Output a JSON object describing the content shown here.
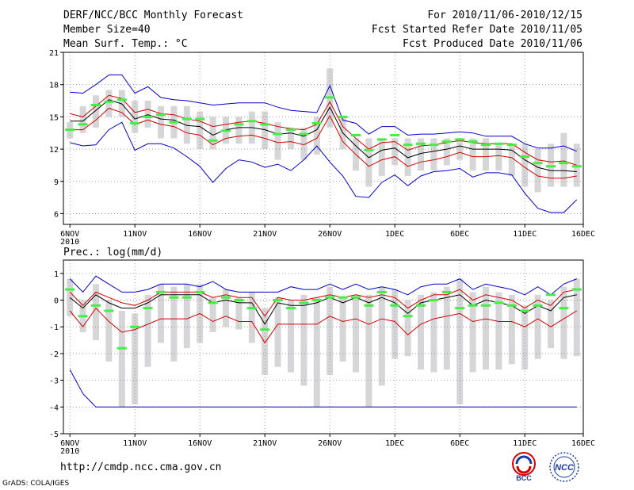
{
  "header": {
    "title": "DERF/NCC/BCC Monthly Forecast",
    "member_size": "Member Size=40",
    "variable": "Mean Surf. Temp.: °C",
    "period": "For 2010/11/06-2010/12/15",
    "started": "Fcst Started Refer Date 2010/11/05",
    "produced": "Fcst Produced Date 2010/11/06"
  },
  "footer": {
    "url": "http://cmdp.ncc.cma.gov.cn",
    "grads": "GrADS: COLA/IGES",
    "logo_bcc": "BCC",
    "logo_ncc": "NCC"
  },
  "colors": {
    "max_min": "#0000cc",
    "spread": "#d40000",
    "mean": "#000000",
    "box": "#d6d6d8",
    "climate": "#44ee44",
    "grid": "#888888"
  },
  "chart_data": [
    {
      "type": "box-line",
      "title": "Mean Surf. Temp.: °C",
      "ylim": [
        5,
        21
      ],
      "yticks": [
        6,
        9,
        12,
        15,
        18,
        21
      ],
      "xlim": [
        0,
        40
      ],
      "xticks": [
        {
          "x": 0.5,
          "label": "6NOV",
          "sub": "2010"
        },
        {
          "x": 5.5,
          "label": "11NOV"
        },
        {
          "x": 10.5,
          "label": "16NOV"
        },
        {
          "x": 15.5,
          "label": "21NOV"
        },
        {
          "x": 20.5,
          "label": "26NOV"
        },
        {
          "x": 25.5,
          "label": "1DEC"
        },
        {
          "x": 30.5,
          "label": "6DEC"
        },
        {
          "x": 35.5,
          "label": "11DEC"
        },
        {
          "x": 40,
          "label": "16DEC"
        }
      ],
      "days": [
        "6NOV",
        "7NOV",
        "8NOV",
        "9NOV",
        "10NOV",
        "11NOV",
        "12NOV",
        "13NOV",
        "14NOV",
        "15NOV",
        "16NOV",
        "17NOV",
        "18NOV",
        "19NOV",
        "20NOV",
        "21NOV",
        "22NOV",
        "23NOV",
        "24NOV",
        "25NOV",
        "26NOV",
        "27NOV",
        "28NOV",
        "29NOV",
        "30NOV",
        "1DEC",
        "2DEC",
        "3DEC",
        "4DEC",
        "5DEC",
        "6DEC",
        "7DEC",
        "8DEC",
        "9DEC",
        "10DEC",
        "11DEC",
        "12DEC",
        "13DEC",
        "14DEC",
        "15DEC"
      ],
      "series": [
        {
          "name": "max",
          "values": [
            17.3,
            17.2,
            18.0,
            18.9,
            18.9,
            17.2,
            17.8,
            16.8,
            16.6,
            16.5,
            16.3,
            16.1,
            16.2,
            16.3,
            16.3,
            16.3,
            15.9,
            15.6,
            15.5,
            15.4,
            17.9,
            14.7,
            14.4,
            13.4,
            14.1,
            14.1,
            13.3,
            13.4,
            13.4,
            13.5,
            13.6,
            13.5,
            13.2,
            13.2,
            13.2,
            12.5,
            12.1,
            12.1,
            12.3,
            11.8
          ]
        },
        {
          "name": "upper",
          "values": [
            15.3,
            15.0,
            16.0,
            17.0,
            16.7,
            15.4,
            15.7,
            15.3,
            15.2,
            14.8,
            14.6,
            14.1,
            14.3,
            14.5,
            14.6,
            14.4,
            14.1,
            13.9,
            13.8,
            14.3,
            16.4,
            14.1,
            13.0,
            12.0,
            12.6,
            12.7,
            11.9,
            12.3,
            12.4,
            12.6,
            12.8,
            12.6,
            12.5,
            12.5,
            12.5,
            11.7,
            11.0,
            10.8,
            10.9,
            10.5
          ]
        },
        {
          "name": "mean",
          "values": [
            14.6,
            14.6,
            15.6,
            16.6,
            16.2,
            14.8,
            15.2,
            14.8,
            14.7,
            14.2,
            14.1,
            13.3,
            13.8,
            14.0,
            14.0,
            13.8,
            13.4,
            13.5,
            13.2,
            13.8,
            15.9,
            13.5,
            12.3,
            11.2,
            11.9,
            12.1,
            11.2,
            11.6,
            11.8,
            12.0,
            12.3,
            12.0,
            12.0,
            12.0,
            11.9,
            11.0,
            10.3,
            10.0,
            10.0,
            9.9
          ]
        },
        {
          "name": "lower",
          "values": [
            13.8,
            13.8,
            14.7,
            15.8,
            15.4,
            14.3,
            14.7,
            14.3,
            14.1,
            13.5,
            13.3,
            12.4,
            13.0,
            13.2,
            13.3,
            13.0,
            12.6,
            12.7,
            12.4,
            13.0,
            15.1,
            12.7,
            11.5,
            10.4,
            11.0,
            11.3,
            10.4,
            10.8,
            11.0,
            11.3,
            11.7,
            11.3,
            11.3,
            11.4,
            11.2,
            10.3,
            9.5,
            9.3,
            9.3,
            9.5
          ]
        },
        {
          "name": "min",
          "values": [
            12.6,
            12.3,
            12.4,
            13.8,
            14.5,
            11.9,
            12.5,
            12.5,
            12.1,
            11.3,
            10.4,
            8.9,
            10.2,
            11.0,
            10.8,
            10.3,
            10.6,
            10.0,
            11.0,
            12.3,
            10.8,
            9.5,
            7.6,
            7.5,
            8.9,
            9.6,
            8.6,
            9.5,
            9.9,
            10.0,
            10.2,
            9.4,
            9.8,
            9.8,
            9.6,
            7.9,
            6.5,
            6.1,
            6.1,
            7.3
          ]
        }
      ],
      "box_low": [
        13.0,
        13.5,
        14.0,
        15.0,
        15.0,
        13.5,
        14.0,
        13.0,
        13.0,
        12.5,
        12.0,
        12.0,
        12.5,
        12.5,
        12.5,
        12.0,
        11.0,
        12.0,
        11.0,
        11.5,
        14.0,
        12.0,
        10.0,
        8.5,
        9.5,
        10.5,
        9.5,
        10.0,
        10.0,
        10.5,
        11.0,
        10.0,
        10.0,
        10.0,
        9.5,
        8.5,
        8.0,
        8.5,
        8.5,
        8.5
      ],
      "box_high": [
        14.5,
        16.0,
        17.0,
        17.5,
        17.5,
        16.5,
        16.5,
        16.0,
        16.0,
        16.0,
        15.5,
        15.0,
        15.0,
        15.0,
        15.5,
        15.5,
        14.5,
        14.0,
        14.0,
        15.0,
        19.5,
        15.0,
        13.0,
        13.0,
        13.0,
        13.0,
        13.0,
        13.0,
        13.0,
        13.0,
        13.0,
        13.0,
        13.0,
        12.5,
        12.5,
        12.5,
        12.0,
        12.5,
        13.5,
        12.5
      ],
      "climate": [
        13.8,
        14.3,
        16.1,
        16.4,
        16.6,
        14.4,
        15.0,
        15.2,
        14.5,
        14.8,
        14.8,
        12.8,
        13.7,
        14.3,
        14.6,
        14.3,
        13.4,
        13.8,
        13.4,
        14.4,
        16.8,
        15.0,
        13.3,
        11.9,
        12.9,
        13.3,
        12.4,
        12.5,
        12.4,
        12.7,
        12.9,
        12.7,
        12.4,
        12.5,
        12.4,
        11.3,
        10.7,
        10.4,
        10.7,
        10.4
      ]
    },
    {
      "type": "box-line",
      "title": "Prec.: log(mm/d)",
      "ylim": [
        -5,
        1.5
      ],
      "yticks": [
        -5,
        -4,
        -3,
        -2,
        -1,
        0,
        1
      ],
      "xlim": [
        0,
        40
      ],
      "xticks": [
        {
          "x": 0.5,
          "label": "6NOV",
          "sub": "2010"
        },
        {
          "x": 5.5,
          "label": "11NOV"
        },
        {
          "x": 10.5,
          "label": "16NOV"
        },
        {
          "x": 15.5,
          "label": "21NOV"
        },
        {
          "x": 20.5,
          "label": "26NOV"
        },
        {
          "x": 25.5,
          "label": "1DEC"
        },
        {
          "x": 30.5,
          "label": "6DEC"
        },
        {
          "x": 35.5,
          "label": "11DEC"
        },
        {
          "x": 40,
          "label": "16DEC"
        }
      ],
      "series": [
        {
          "name": "max",
          "values": [
            0.8,
            0.3,
            0.9,
            0.6,
            0.3,
            0.3,
            0.4,
            0.6,
            0.6,
            0.6,
            0.5,
            0.7,
            0.4,
            0.3,
            0.3,
            0.3,
            0.3,
            0.5,
            0.4,
            0.4,
            0.6,
            0.4,
            0.6,
            0.4,
            0.5,
            0.4,
            0.2,
            0.5,
            0.6,
            0.6,
            0.8,
            0.4,
            0.6,
            0.5,
            0.4,
            0.2,
            0.5,
            0.2,
            0.6,
            0.8
          ]
        },
        {
          "name": "upper",
          "values": [
            0.3,
            -0.2,
            0.3,
            0.1,
            -0.1,
            -0.2,
            0.0,
            0.3,
            0.3,
            0.3,
            0.3,
            0.1,
            0.2,
            0.1,
            0.1,
            -0.6,
            0.1,
            0.0,
            0.0,
            0.1,
            0.2,
            0.1,
            0.2,
            0.1,
            0.2,
            0.1,
            -0.3,
            0.0,
            0.2,
            0.2,
            0.4,
            0.0,
            0.2,
            0.1,
            0.0,
            -0.3,
            0.0,
            -0.2,
            0.3,
            0.4
          ]
        },
        {
          "name": "mean",
          "values": [
            0.1,
            -0.3,
            0.2,
            -0.1,
            -0.3,
            -0.3,
            -0.1,
            0.2,
            0.2,
            0.2,
            0.2,
            -0.1,
            0.0,
            -0.1,
            -0.1,
            -0.9,
            -0.1,
            -0.2,
            -0.2,
            -0.1,
            0.1,
            -0.1,
            0.1,
            -0.1,
            0.1,
            -0.1,
            -0.5,
            -0.1,
            0.0,
            0.1,
            0.2,
            -0.2,
            0.0,
            -0.1,
            -0.2,
            -0.5,
            -0.2,
            -0.4,
            0.1,
            0.2
          ]
        },
        {
          "name": "lower",
          "values": [
            -0.4,
            -1.0,
            -0.3,
            -0.8,
            -1.2,
            -1.1,
            -0.9,
            -0.7,
            -0.7,
            -0.7,
            -0.5,
            -0.8,
            -0.6,
            -0.8,
            -0.8,
            -1.6,
            -0.9,
            -0.9,
            -0.9,
            -0.9,
            -0.6,
            -0.8,
            -0.7,
            -0.9,
            -0.7,
            -0.8,
            -1.3,
            -0.9,
            -0.7,
            -0.6,
            -0.5,
            -0.8,
            -0.7,
            -0.8,
            -0.8,
            -1.0,
            -0.7,
            -1.0,
            -0.7,
            -0.4
          ]
        },
        {
          "name": "min",
          "values": [
            -2.6,
            -3.5,
            -4.0,
            -4.0,
            -4.0,
            -4.0,
            -4.0,
            -4.0,
            -4.0,
            -4.0,
            -4.0,
            -4.0,
            -4.0,
            -4.0,
            -4.0,
            -4.0,
            -4.0,
            -4.0,
            -4.0,
            -4.0,
            -4.0,
            -4.0,
            -4.0,
            -4.0,
            -4.0,
            -4.0,
            -4.0,
            -4.0,
            -4.0,
            -4.0,
            -4.0,
            -4.0,
            -4.0,
            -4.0,
            -4.0,
            -4.0,
            -4.0,
            -4.0,
            -4.0,
            -4.0
          ]
        }
      ],
      "box_low": [
        -0.6,
        -1.2,
        -1.5,
        -2.3,
        -4.0,
        -3.9,
        -2.5,
        -1.6,
        -2.3,
        -1.8,
        -1.6,
        -1.2,
        -1.0,
        -1.1,
        -1.6,
        -2.8,
        -2.5,
        -2.7,
        -3.2,
        -4.0,
        -2.8,
        -2.3,
        -2.7,
        -4.0,
        -3.2,
        -2.2,
        -2.1,
        -2.6,
        -2.7,
        -2.6,
        -3.9,
        -2.7,
        -2.6,
        -2.6,
        -2.4,
        -2.6,
        -2.2,
        -1.8,
        -2.2,
        -2.1
      ],
      "box_high": [
        0.8,
        0.0,
        0.6,
        0.0,
        -0.4,
        -0.5,
        0.2,
        0.6,
        0.5,
        0.6,
        0.6,
        0.1,
        0.4,
        0.1,
        0.3,
        -0.3,
        0.1,
        0.0,
        0.2,
        0.1,
        0.5,
        0.1,
        0.2,
        0.2,
        0.5,
        0.4,
        0.0,
        0.2,
        0.3,
        0.5,
        0.8,
        0.3,
        0.5,
        0.3,
        0.2,
        -0.2,
        0.2,
        0.0,
        0.5,
        0.8
      ],
      "climate": [
        0.4,
        -0.6,
        -0.2,
        -0.4,
        -1.8,
        -1.0,
        -0.3,
        0.3,
        0.1,
        0.1,
        0.3,
        -0.1,
        0.1,
        0.0,
        -0.3,
        -1.1,
        0.0,
        -0.3,
        -0.1,
        0.0,
        0.1,
        0.1,
        0.1,
        -0.2,
        0.3,
        -0.2,
        -0.6,
        -0.2,
        0.0,
        0.3,
        -0.3,
        -0.2,
        -0.2,
        -0.1,
        -0.2,
        -0.4,
        -0.2,
        0.2,
        -0.3,
        0.4
      ]
    }
  ]
}
